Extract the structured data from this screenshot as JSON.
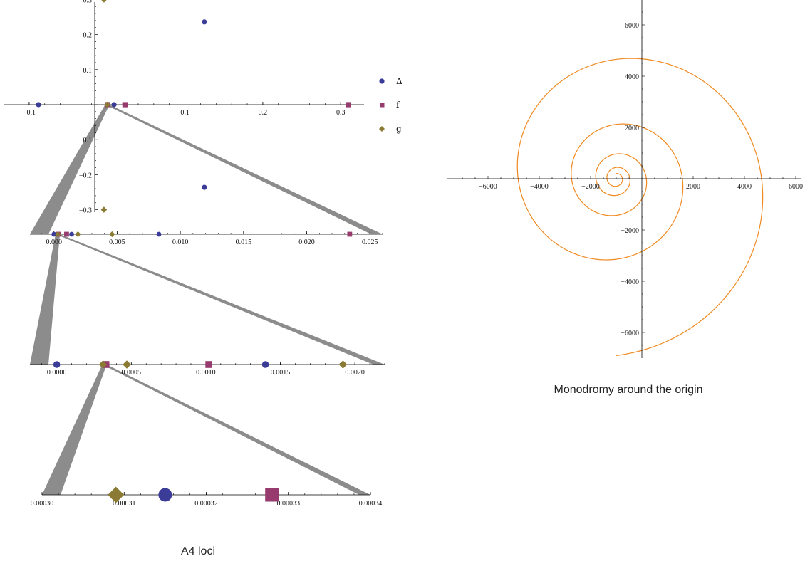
{
  "captions": {
    "loci": "A4 loci",
    "monodromy": "Monodromy around the origin"
  },
  "legend": [
    {
      "label": "Δ",
      "series": "delta"
    },
    {
      "label": "f",
      "series": "f"
    },
    {
      "label": "g",
      "series": "g"
    }
  ],
  "colors": {
    "delta": "#3b3b98",
    "f": "#973a6e",
    "g": "#8a7a33",
    "spiral": "#f0891f",
    "wedge": "#8c8c8c",
    "axis": "#000000"
  },
  "chart_data": [
    {
      "type": "scatter",
      "panel": "complex plane",
      "xlim": [
        -0.11,
        0.33
      ],
      "ylim": [
        -0.32,
        0.31
      ],
      "x_ticks": [
        -0.1,
        0.1,
        0.2,
        0.3
      ],
      "x_tick_labels": [
        "−0.1",
        "0.1",
        "0.2",
        "0.3"
      ],
      "y_ticks": [
        -0.3,
        -0.2,
        -0.1,
        0.1,
        0.2,
        0.3
      ],
      "y_tick_labels": [
        "−0.3",
        "−0.2",
        "−0.1",
        "0.1",
        "0.2",
        "0.3"
      ],
      "series": [
        {
          "name": "Δ",
          "key": "delta",
          "marker": "circle",
          "points": [
            [
              -0.088,
              0
            ],
            [
              0.0003,
              0
            ],
            [
              0.009,
              0
            ],
            [
              0.125,
              0.236
            ],
            [
              0.125,
              -0.236
            ]
          ]
        },
        {
          "name": "f",
          "key": "f",
          "marker": "square",
          "points": [
            [
              0.0003,
              0
            ],
            [
              0.023,
              0
            ],
            [
              0.31,
              0
            ]
          ]
        },
        {
          "name": "g",
          "key": "g",
          "marker": "diamond",
          "points": [
            [
              0.0003,
              0
            ],
            [
              -0.004,
              0.3
            ],
            [
              -0.004,
              -0.3
            ]
          ]
        }
      ]
    },
    {
      "type": "scatter",
      "panel": "zoom 1",
      "xlim": [
        -0.0019,
        0.026
      ],
      "x_ticks": [
        0.0,
        0.005,
        0.01,
        0.015,
        0.02,
        0.025
      ],
      "x_tick_labels": [
        "0.000",
        "0.005",
        "0.010",
        "0.015",
        "0.020",
        "0.025"
      ],
      "series": [
        {
          "name": "Δ",
          "key": "delta",
          "marker": "circle",
          "values": [
            0.0,
            0.0014,
            0.0083
          ]
        },
        {
          "name": "f",
          "key": "f",
          "marker": "square",
          "values": [
            0.00033,
            0.001,
            0.0234
          ]
        },
        {
          "name": "g",
          "key": "g",
          "marker": "diamond",
          "values": [
            0.00031,
            0.0019,
            0.0046
          ]
        }
      ]
    },
    {
      "type": "scatter",
      "panel": "zoom 2",
      "xlim": [
        -0.00018,
        0.0022
      ],
      "x_ticks": [
        0.0,
        0.0005,
        0.001,
        0.0015,
        0.002
      ],
      "x_tick_labels": [
        "0.0000",
        "0.0005",
        "0.0010",
        "0.0015",
        "0.0020"
      ],
      "series": [
        {
          "name": "Δ",
          "key": "delta",
          "marker": "circle",
          "values": [
            0.0,
            0.000315,
            0.0014
          ]
        },
        {
          "name": "f",
          "key": "f",
          "marker": "square",
          "values": [
            0.00033,
            0.00102
          ]
        },
        {
          "name": "g",
          "key": "g",
          "marker": "diamond",
          "values": [
            0.00031,
            0.00047,
            0.00192
          ]
        }
      ]
    },
    {
      "type": "scatter",
      "panel": "zoom 3",
      "xlim": [
        0.0003,
        0.00034
      ],
      "x_ticks": [
        0.0003,
        0.00031,
        0.00032,
        0.00033,
        0.00034
      ],
      "x_tick_labels": [
        "0.00030",
        "0.00031",
        "0.00032",
        "0.00033",
        "0.00034"
      ],
      "series": [
        {
          "name": "Δ",
          "key": "delta",
          "marker": "circle",
          "values": [
            0.000315
          ]
        },
        {
          "name": "f",
          "key": "f",
          "marker": "square",
          "values": [
            0.000328
          ]
        },
        {
          "name": "g",
          "key": "g",
          "marker": "diamond",
          "values": [
            0.000309
          ]
        }
      ]
    },
    {
      "type": "line",
      "panel": "monodromy",
      "curve": "spiral",
      "xlim": [
        -7600,
        6200
      ],
      "ylim": [
        -7000,
        7000
      ],
      "x_ticks": [
        -6000,
        -4000,
        -2000,
        2000,
        4000,
        6000
      ],
      "x_tick_labels": [
        "−6000",
        "−4000",
        "−2000",
        "2000",
        "4000",
        "6000"
      ],
      "y_ticks": [
        -6000,
        -4000,
        -2000,
        2000,
        4000,
        6000
      ],
      "y_tick_labels": [
        "−6000",
        "−4000",
        "−2000",
        "2000",
        "4000",
        "6000"
      ],
      "spiral": {
        "center": [
          -1000,
          0
        ],
        "r_inner": 200,
        "r_outer": 6900,
        "turns": 4.5
      }
    }
  ]
}
